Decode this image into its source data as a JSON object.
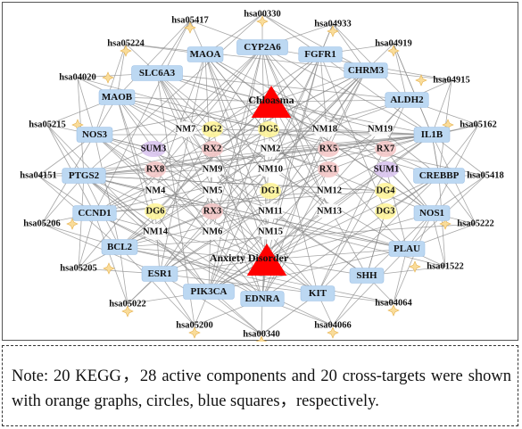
{
  "diagram": {
    "diseases": [
      {
        "id": "chloasma",
        "label": "Chloasma"
      },
      {
        "id": "anxiety",
        "label": "Anxiety Disorder"
      }
    ],
    "kegg": [
      {
        "id": "hsa00330",
        "label": "hsa00330"
      },
      {
        "id": "hsa05417",
        "label": "hsa05417"
      },
      {
        "id": "hsa04933",
        "label": "hsa04933"
      },
      {
        "id": "hsa05224",
        "label": "hsa05224"
      },
      {
        "id": "hsa04919",
        "label": "hsa04919"
      },
      {
        "id": "hsa04020",
        "label": "hsa04020"
      },
      {
        "id": "hsa04915",
        "label": "hsa04915"
      },
      {
        "id": "hsa05215",
        "label": "hsa05215"
      },
      {
        "id": "hsa05162",
        "label": "hsa05162"
      },
      {
        "id": "hsa04151",
        "label": "hsa04151"
      },
      {
        "id": "hsa05418",
        "label": "hsa05418"
      },
      {
        "id": "hsa05206",
        "label": "hsa05206"
      },
      {
        "id": "hsa05222",
        "label": "hsa05222"
      },
      {
        "id": "hsa05205",
        "label": "hsa05205"
      },
      {
        "id": "hsa01522",
        "label": "hsa01522"
      },
      {
        "id": "hsa05022",
        "label": "hsa05022"
      },
      {
        "id": "hsa04064",
        "label": "hsa04064"
      },
      {
        "id": "hsa05200",
        "label": "hsa05200"
      },
      {
        "id": "hsa04066",
        "label": "hsa04066"
      },
      {
        "id": "hsa00340",
        "label": "hsa00340"
      }
    ],
    "targets": [
      {
        "id": "MAOA",
        "label": "MAOA"
      },
      {
        "id": "CYP2A6",
        "label": "CYP2A6"
      },
      {
        "id": "FGFR1",
        "label": "FGFR1"
      },
      {
        "id": "SLC6A3",
        "label": "SLC6A3"
      },
      {
        "id": "CHRM3",
        "label": "CHRM3"
      },
      {
        "id": "MAOB",
        "label": "MAOB"
      },
      {
        "id": "ALDH2",
        "label": "ALDH2"
      },
      {
        "id": "NOS3",
        "label": "NOS3"
      },
      {
        "id": "IL1B",
        "label": "IL1B"
      },
      {
        "id": "PTGS2",
        "label": "PTGS2"
      },
      {
        "id": "CREBBP",
        "label": "CREBBP"
      },
      {
        "id": "CCND1",
        "label": "CCND1"
      },
      {
        "id": "NOS1",
        "label": "NOS1"
      },
      {
        "id": "BCL2",
        "label": "BCL2"
      },
      {
        "id": "PLAU",
        "label": "PLAU"
      },
      {
        "id": "ESR1",
        "label": "ESR1"
      },
      {
        "id": "SHH",
        "label": "SHH"
      },
      {
        "id": "PIK3CA",
        "label": "PIK3CA"
      },
      {
        "id": "KIT",
        "label": "KIT"
      },
      {
        "id": "EDNRA",
        "label": "EDNRA"
      }
    ],
    "components": [
      {
        "id": "NM7",
        "label": "NM7",
        "group": "NM"
      },
      {
        "id": "DG2",
        "label": "DG2",
        "group": "DG"
      },
      {
        "id": "DG5",
        "label": "DG5",
        "group": "DG"
      },
      {
        "id": "NM18",
        "label": "NM18",
        "group": "NM"
      },
      {
        "id": "NM19",
        "label": "NM19",
        "group": "NM"
      },
      {
        "id": "SUM3",
        "label": "SUM3",
        "group": "SUM"
      },
      {
        "id": "RX2",
        "label": "RX2",
        "group": "RX"
      },
      {
        "id": "NM2",
        "label": "NM2",
        "group": "NM"
      },
      {
        "id": "RX5",
        "label": "RX5",
        "group": "RX"
      },
      {
        "id": "RX7",
        "label": "RX7",
        "group": "RX"
      },
      {
        "id": "RX8",
        "label": "RX8",
        "group": "RX"
      },
      {
        "id": "NM9",
        "label": "NM9",
        "group": "NM"
      },
      {
        "id": "NM10",
        "label": "NM10",
        "group": "NM"
      },
      {
        "id": "RX1",
        "label": "RX1",
        "group": "RX"
      },
      {
        "id": "SUM1",
        "label": "SUM1",
        "group": "SUM"
      },
      {
        "id": "NM4",
        "label": "NM4",
        "group": "NM"
      },
      {
        "id": "NM5",
        "label": "NM5",
        "group": "NM"
      },
      {
        "id": "DG1",
        "label": "DG1",
        "group": "DG"
      },
      {
        "id": "NM12",
        "label": "NM12",
        "group": "NM"
      },
      {
        "id": "DG4",
        "label": "DG4",
        "group": "DG"
      },
      {
        "id": "DG6",
        "label": "DG6",
        "group": "DG"
      },
      {
        "id": "RX3",
        "label": "RX3",
        "group": "RX"
      },
      {
        "id": "NM11",
        "label": "NM11",
        "group": "NM"
      },
      {
        "id": "NM13",
        "label": "NM13",
        "group": "NM"
      },
      {
        "id": "DG3",
        "label": "DG3",
        "group": "DG"
      },
      {
        "id": "NM14",
        "label": "NM14",
        "group": "NM"
      },
      {
        "id": "NM6",
        "label": "NM6",
        "group": "NM"
      },
      {
        "id": "NM15",
        "label": "NM15",
        "group": "NM"
      }
    ],
    "colors": {
      "kegg": "#f9dc9a",
      "kegg_border": "#e6b04a",
      "target": "#bcd8f2",
      "target_border": "#9fc2e6",
      "disease": "#ff0000",
      "edge": "#8a8a8a",
      "component_groups": {
        "NM": "#ffffff",
        "DG": "#fff59a",
        "RX": "#f4c8c8",
        "SUM": "#d9c4ee"
      }
    }
  },
  "note": {
    "text": "Note: 20 KEGG，28 active components and 20 cross-targets were shown with orange graphs, circles, blue squares，respectively."
  }
}
